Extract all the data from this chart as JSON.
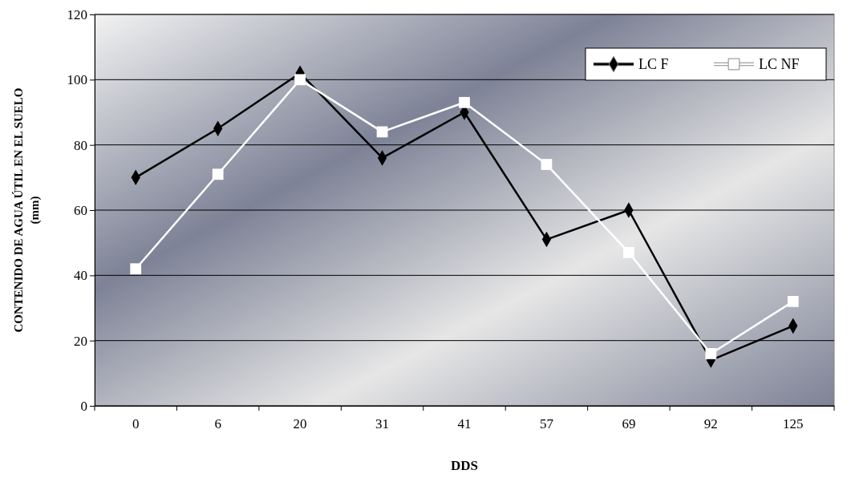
{
  "chart_data": {
    "type": "line",
    "xlabel": "DDS",
    "ylabel": "CONTENIDO DE AGUA ÚTIL EN EL SUELO (mm)",
    "categories": [
      "0",
      "6",
      "20",
      "31",
      "41",
      "57",
      "69",
      "92",
      "125"
    ],
    "series": [
      {
        "name": "LC F",
        "color": "#000000",
        "marker": "diamond",
        "values": [
          70,
          85,
          102,
          76,
          90,
          51,
          60,
          14,
          24.5
        ]
      },
      {
        "name": "LC NF",
        "color": "#ffffff",
        "marker": "square",
        "values": [
          42,
          71,
          100,
          84,
          93,
          74,
          47,
          16,
          32
        ]
      }
    ],
    "ylim": [
      0,
      120
    ],
    "yticks": [
      0,
      20,
      40,
      60,
      80,
      100,
      120
    ],
    "grid": "y",
    "legend": "top right",
    "line_style": "solid"
  }
}
